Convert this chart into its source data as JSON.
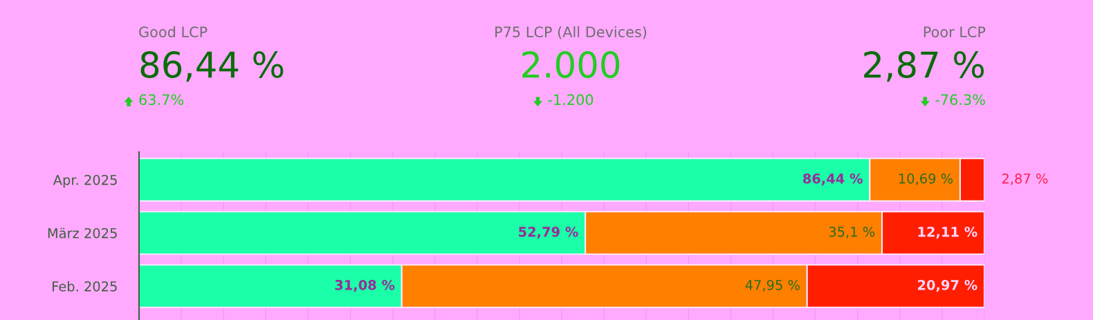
{
  "chart_data": [
    {
      "type": "other",
      "annotations": [
        "Good LCP",
        "86,44 %",
        "63.7%",
        "P75 LCP (All Devices)",
        "2.000",
        "-1.200",
        "Poor LCP",
        "2,87 %",
        "-76.3%"
      ]
    },
    {
      "type": "bar",
      "orientation": "horizontal",
      "stacked": true,
      "categories": [
        "Apr. 2025",
        "März 2025",
        "Feb. 2025"
      ],
      "xlim": [
        0,
        100
      ],
      "xticks": [
        {
          "value": 0,
          "label": null
        },
        {
          "value": 5,
          "label": null
        },
        {
          "value": 10,
          "label": null
        },
        {
          "value": 15,
          "label": null
        },
        {
          "value": 20,
          "label": null
        },
        {
          "value": 25,
          "label": null
        },
        {
          "value": 30,
          "label": null
        },
        {
          "value": 35,
          "label": null
        },
        {
          "value": 40,
          "label": null
        },
        {
          "value": 45,
          "label": null
        },
        {
          "value": 50,
          "label": null
        },
        {
          "value": 55,
          "label": null
        },
        {
          "value": 60,
          "label": null
        },
        {
          "value": 65,
          "label": null
        },
        {
          "value": 70,
          "label": null
        },
        {
          "value": 75,
          "label": null
        },
        {
          "value": 80,
          "label": null
        },
        {
          "value": 85,
          "label": null
        },
        {
          "value": 90,
          "label": null
        },
        {
          "value": 95,
          "label": null
        },
        {
          "value": 100,
          "label": null
        }
      ],
      "tick_labels": "y",
      "grid": "x",
      "legend": false,
      "series": [
        {
          "color": "#1affa8",
          "values": [
            86.44,
            52.79,
            31.08
          ],
          "value_labels": [
            "86,44 %",
            "52,79 %",
            "31,08 %"
          ]
        },
        {
          "color": "#ff7f00",
          "values": [
            10.69,
            35.1,
            47.95
          ],
          "value_labels": [
            "10,69 %",
            "35,1 %",
            "47,95 %"
          ]
        },
        {
          "color": "#ff1e00",
          "values": [
            2.87,
            12.11,
            20.97
          ],
          "value_labels": [
            "2,87 %",
            "12,11 %",
            "20,97 %"
          ]
        }
      ]
    }
  ]
}
